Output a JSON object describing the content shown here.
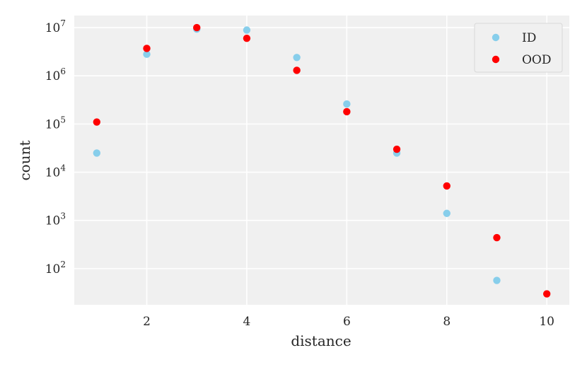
{
  "chart_data": {
    "type": "scatter",
    "title": "",
    "xlabel": "distance",
    "ylabel": "count",
    "xlim": [
      0.55,
      10.45
    ],
    "ylim_log10": [
      1.25,
      7.25
    ],
    "yscale": "log",
    "grid": true,
    "legend_position": "top-right",
    "x_ticks": [
      2,
      4,
      6,
      8,
      10
    ],
    "y_ticks": [
      {
        "exp": 2,
        "base": "10",
        "power": "2"
      },
      {
        "exp": 3,
        "base": "10",
        "power": "3"
      },
      {
        "exp": 4,
        "base": "10",
        "power": "4"
      },
      {
        "exp": 5,
        "base": "10",
        "power": "5"
      },
      {
        "exp": 6,
        "base": "10",
        "power": "6"
      },
      {
        "exp": 7,
        "base": "10",
        "power": "7"
      }
    ],
    "series": [
      {
        "name": "ID",
        "color": "#87ceeb",
        "points": [
          {
            "x": 1,
            "y": 25000
          },
          {
            "x": 2,
            "y": 2800000
          },
          {
            "x": 3,
            "y": 9300000
          },
          {
            "x": 4,
            "y": 8900000
          },
          {
            "x": 5,
            "y": 2400000
          },
          {
            "x": 6,
            "y": 260000
          },
          {
            "x": 7,
            "y": 25000
          },
          {
            "x": 8,
            "y": 1400
          },
          {
            "x": 9,
            "y": 57
          }
        ]
      },
      {
        "name": "OOD",
        "color": "#ff0000",
        "points": [
          {
            "x": 1,
            "y": 110000
          },
          {
            "x": 2,
            "y": 3700000
          },
          {
            "x": 3,
            "y": 10000000
          },
          {
            "x": 4,
            "y": 6000000
          },
          {
            "x": 5,
            "y": 1300000
          },
          {
            "x": 6,
            "y": 180000
          },
          {
            "x": 7,
            "y": 30000
          },
          {
            "x": 8,
            "y": 5200
          },
          {
            "x": 9,
            "y": 440
          },
          {
            "x": 10,
            "y": 30
          }
        ]
      }
    ]
  }
}
